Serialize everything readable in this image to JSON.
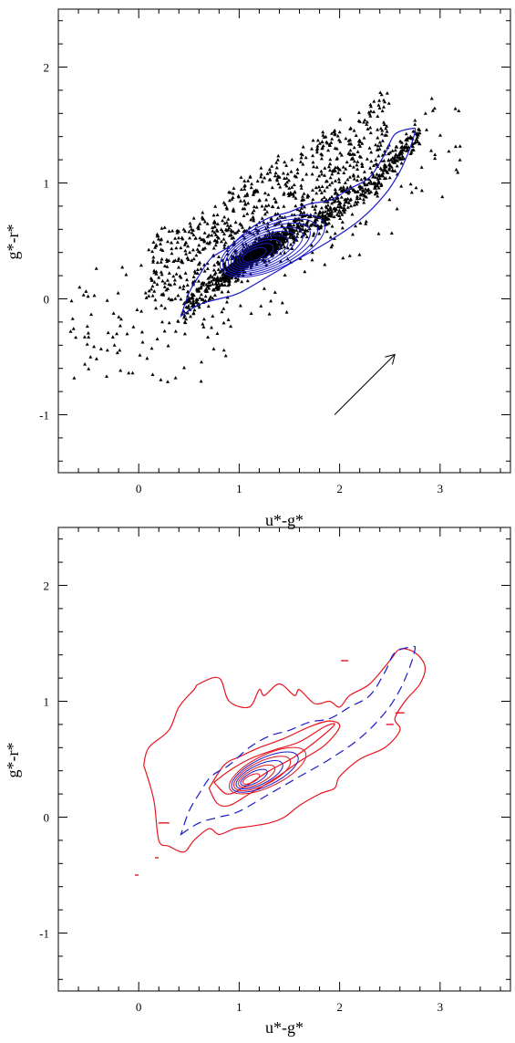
{
  "chart_data": [
    {
      "type": "scatter",
      "xlabel": "u*-g*",
      "ylabel": "g*-r*",
      "xlim": [
        -0.8,
        3.7
      ],
      "ylim": [
        -1.5,
        2.5
      ],
      "xticks": [
        0,
        1,
        2,
        3
      ],
      "yticks": [
        -1,
        0,
        1,
        2
      ],
      "xtick_labels": [
        "0",
        "1",
        "2",
        "3"
      ],
      "ytick_labels": [
        "-1",
        "0",
        "1",
        "2"
      ],
      "grid": false,
      "marker_color": "#000000",
      "contour_color": "#1a1acc",
      "density_ridge": {
        "x": [
          0.45,
          0.8,
          1.0,
          1.2,
          1.5,
          1.8,
          2.1,
          2.4,
          2.6,
          2.75
        ],
        "y": [
          -0.1,
          0.15,
          0.3,
          0.42,
          0.55,
          0.7,
          0.85,
          1.05,
          1.25,
          1.4
        ]
      },
      "contour_outer": {
        "x": [
          0.42,
          0.6,
          0.8,
          1.0,
          1.3,
          1.6,
          1.9,
          2.2,
          2.45,
          2.6,
          2.7,
          2.75,
          2.72,
          2.55,
          2.45,
          2.3,
          2.1,
          1.9,
          1.7,
          1.5,
          1.3,
          1.1,
          0.9,
          0.72,
          0.6,
          0.5,
          0.42
        ],
        "y": [
          -0.15,
          -0.05,
          0.0,
          0.05,
          0.2,
          0.35,
          0.5,
          0.68,
          0.9,
          1.1,
          1.3,
          1.45,
          1.47,
          1.42,
          1.25,
          1.05,
          0.95,
          0.85,
          0.82,
          0.75,
          0.7,
          0.6,
          0.45,
          0.35,
          0.2,
          0.05,
          -0.15
        ]
      },
      "annotation": "arrow",
      "arrow": {
        "x": [
          1.95,
          2.55
        ],
        "y": [
          -1.0,
          -0.48
        ]
      }
    },
    {
      "type": "contour",
      "xlabel": "u*-g*",
      "ylabel": "g*-r*",
      "xlim": [
        -0.8,
        3.7
      ],
      "ylim": [
        -1.5,
        2.5
      ],
      "xticks": [
        0,
        1,
        2,
        3
      ],
      "yticks": [
        -1,
        0,
        1,
        2
      ],
      "xtick_labels": [
        "0",
        "1",
        "2",
        "3"
      ],
      "ytick_labels": [
        "-1",
        "0",
        "1",
        "2"
      ],
      "grid": false,
      "series": [
        {
          "color": "#e8141e",
          "style": "solid",
          "contours": [
            {
              "x": [
                0.05,
                0.1,
                0.3,
                0.4,
                0.55,
                0.6,
                0.8,
                0.9,
                1.1,
                1.2,
                1.25,
                1.4,
                1.55,
                1.6,
                1.75,
                1.9,
                2.0,
                2.1,
                2.3,
                2.5,
                2.6,
                2.75,
                2.85,
                2.8,
                2.65,
                2.55,
                2.6,
                2.45,
                2.2,
                2.0,
                1.95,
                1.8,
                1.6,
                1.45,
                1.3,
                1.1,
                0.95,
                0.8,
                0.7,
                0.55,
                0.45,
                0.3,
                0.2,
                0.15,
                0.05
              ],
              "y": [
                0.45,
                0.6,
                0.75,
                0.95,
                1.1,
                1.15,
                1.2,
                1.0,
                0.95,
                1.1,
                1.05,
                1.15,
                1.05,
                1.1,
                0.98,
                1.0,
                0.95,
                1.05,
                1.15,
                1.35,
                1.45,
                1.42,
                1.3,
                1.15,
                1.0,
                0.85,
                0.75,
                0.6,
                0.5,
                0.35,
                0.25,
                0.2,
                0.1,
                0.0,
                -0.05,
                -0.08,
                -0.1,
                -0.15,
                -0.1,
                -0.2,
                -0.3,
                -0.25,
                -0.2,
                0.15,
                0.45
              ]
            },
            {
              "x": [
                0.7,
                0.85,
                1.0,
                1.2,
                1.45,
                1.7,
                1.9,
                2.0,
                1.85,
                1.6,
                1.35,
                1.1,
                0.9,
                0.78,
                0.7
              ],
              "y": [
                0.25,
                0.45,
                0.52,
                0.6,
                0.68,
                0.78,
                0.83,
                0.78,
                0.62,
                0.48,
                0.33,
                0.2,
                0.1,
                0.12,
                0.25
              ]
            },
            {
              "x": [
                0.75,
                0.9,
                1.1,
                1.35,
                1.6,
                1.85,
                1.95,
                1.8,
                1.55,
                1.3,
                1.05,
                0.88,
                0.75
              ],
              "y": [
                0.3,
                0.4,
                0.5,
                0.58,
                0.65,
                0.78,
                0.8,
                0.68,
                0.52,
                0.4,
                0.26,
                0.2,
                0.3
              ]
            }
          ]
        },
        {
          "color": "#1a1acc",
          "style": "dashed",
          "contours": [
            {
              "x": [
                0.42,
                0.6,
                0.8,
                1.0,
                1.3,
                1.6,
                1.9,
                2.2,
                2.45,
                2.6,
                2.7,
                2.75,
                2.72,
                2.55,
                2.45,
                2.3,
                2.1,
                1.9,
                1.7,
                1.5,
                1.3,
                1.1,
                0.9,
                0.72,
                0.6,
                0.5,
                0.42
              ],
              "y": [
                -0.15,
                -0.05,
                0.0,
                0.05,
                0.2,
                0.35,
                0.5,
                0.68,
                0.9,
                1.1,
                1.3,
                1.45,
                1.47,
                1.42,
                1.25,
                1.05,
                0.95,
                0.85,
                0.82,
                0.75,
                0.7,
                0.6,
                0.45,
                0.35,
                0.2,
                0.05,
                -0.15
              ]
            }
          ]
        }
      ],
      "cores": {
        "center_x": 1.12,
        "center_y": 0.33,
        "levels": 7
      }
    }
  ]
}
